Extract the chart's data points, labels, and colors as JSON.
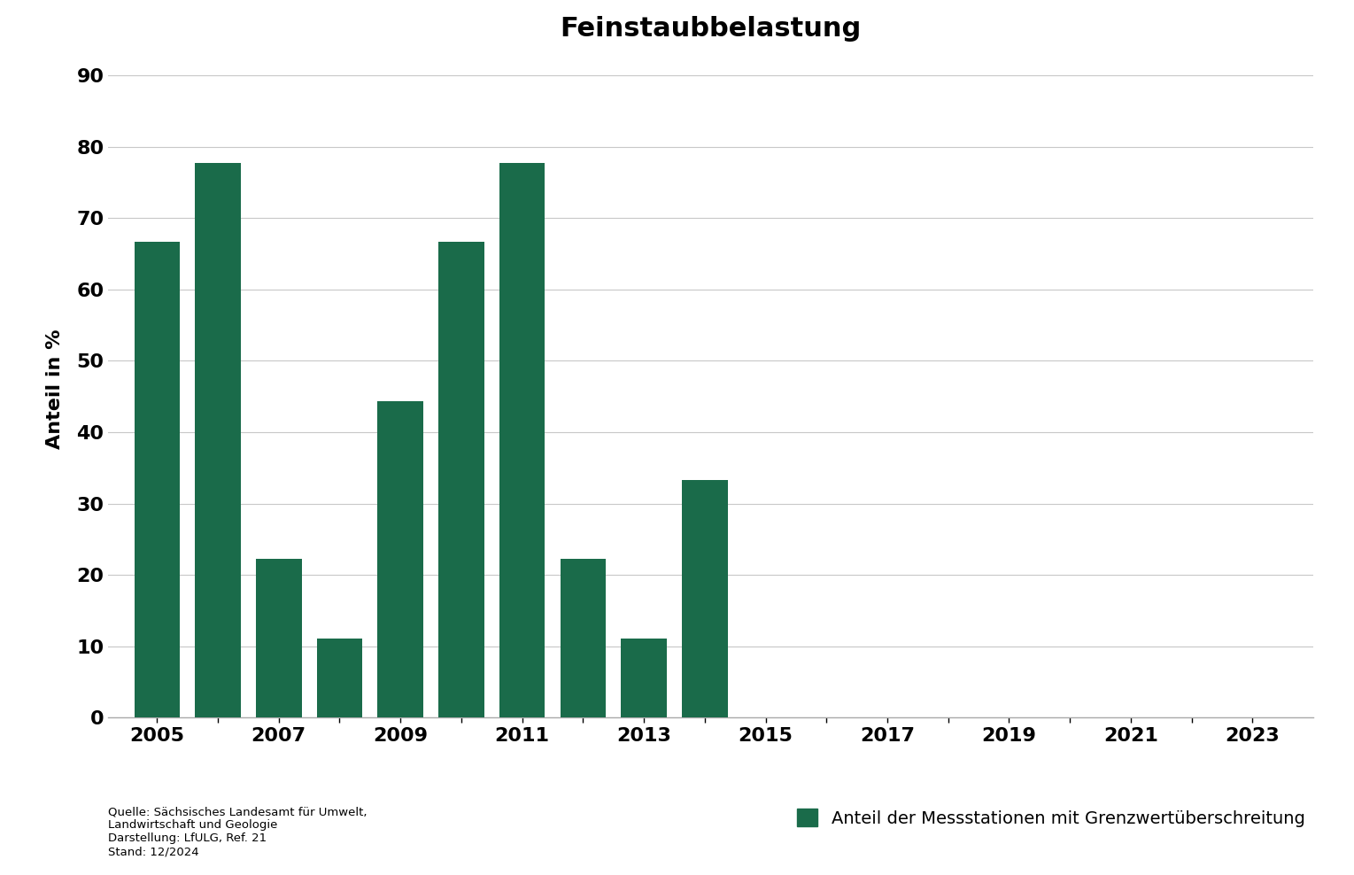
{
  "title": "Feinstaubbelastung",
  "ylabel": "Anteil in %",
  "bar_color": "#1a6b4a",
  "background_color": "#ffffff",
  "years": [
    2005,
    2006,
    2007,
    2008,
    2009,
    2010,
    2011,
    2012,
    2013,
    2014,
    2015,
    2016,
    2017,
    2018,
    2019,
    2020,
    2021,
    2022,
    2023
  ],
  "values": [
    66.7,
    77.8,
    22.2,
    11.1,
    44.4,
    66.7,
    77.8,
    22.2,
    11.1,
    33.3,
    0,
    0,
    0,
    0,
    0,
    0,
    0,
    0,
    0
  ],
  "ylim": [
    0,
    92
  ],
  "yticks": [
    0,
    10,
    20,
    30,
    40,
    50,
    60,
    70,
    80,
    90
  ],
  "all_years": [
    2005,
    2006,
    2007,
    2008,
    2009,
    2010,
    2011,
    2012,
    2013,
    2014,
    2015,
    2016,
    2017,
    2018,
    2019,
    2020,
    2021,
    2022,
    2023
  ],
  "label_years": [
    2005,
    2007,
    2009,
    2011,
    2013,
    2015,
    2017,
    2019,
    2021,
    2023
  ],
  "title_fontsize": 22,
  "ylabel_fontsize": 16,
  "tick_fontsize": 16,
  "legend_label": "Anteil der Messstationen mit Grenzwertüberschreitung",
  "source_text": "Quelle: Sächsisches Landesamt für Umwelt,\nLandwirtschaft und Geologie\nDarstellung: LfULG, Ref. 21\nStand: 12/2024",
  "grid_color": "#c8c8c8",
  "bar_width": 0.75
}
